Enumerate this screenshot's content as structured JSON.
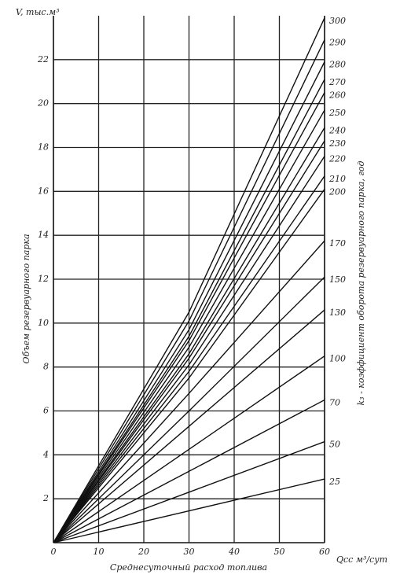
{
  "chart_data": {
    "type": "line",
    "y_title": "V, тыс.м³",
    "y_label": "Объем резервуарного парка",
    "x_title": "Qсс м³/сут",
    "x_label": "Среднесуточный расход топлива",
    "y2_label": "k₃ - коэффициент оборота резервуарного парка, год",
    "x": [
      0,
      30,
      60
    ],
    "xlim": [
      0,
      60
    ],
    "xticks": [
      0,
      10,
      20,
      30,
      40,
      50,
      60
    ],
    "ylim": [
      0,
      24
    ],
    "yticks": [
      2,
      4,
      6,
      8,
      10,
      12,
      14,
      16,
      18,
      20,
      22
    ],
    "grid": true,
    "series": [
      {
        "name": "25",
        "color": "#111",
        "values": [
          0,
          1.45,
          2.9
        ]
      },
      {
        "name": "50",
        "color": "#111",
        "values": [
          0,
          2.3,
          4.6
        ]
      },
      {
        "name": "70",
        "color": "#111",
        "values": [
          0,
          3.25,
          6.5
        ]
      },
      {
        "name": "100",
        "color": "#111",
        "values": [
          0,
          4.25,
          8.5
        ]
      },
      {
        "name": "130",
        "color": "#111",
        "values": [
          0,
          5.3,
          10.6
        ]
      },
      {
        "name": "150",
        "color": "#111",
        "values": [
          0,
          6.0,
          12.1
        ]
      },
      {
        "name": "170",
        "color": "#111",
        "values": [
          0,
          6.8,
          13.75
        ]
      },
      {
        "name": "200",
        "color": "#111",
        "values": [
          0,
          7.5,
          16.1
        ]
      },
      {
        "name": "210",
        "color": "#111",
        "values": [
          0,
          7.8,
          16.7
        ]
      },
      {
        "name": "220",
        "color": "#111",
        "values": [
          0,
          8.1,
          17.6
        ]
      },
      {
        "name": "230",
        "color": "#111",
        "values": [
          0,
          8.4,
          18.3
        ]
      },
      {
        "name": "240",
        "color": "#111",
        "values": [
          0,
          8.6,
          18.9
        ]
      },
      {
        "name": "250",
        "color": "#111",
        "values": [
          0,
          8.9,
          19.7
        ]
      },
      {
        "name": "260",
        "color": "#111",
        "values": [
          0,
          9.2,
          20.5
        ]
      },
      {
        "name": "270",
        "color": "#111",
        "values": [
          0,
          9.4,
          21.1
        ]
      },
      {
        "name": "280",
        "color": "#111",
        "values": [
          0,
          9.7,
          21.9
        ]
      },
      {
        "name": "290",
        "color": "#111",
        "values": [
          0,
          10.1,
          22.9
        ]
      },
      {
        "name": "300",
        "color": "#111",
        "values": [
          0,
          10.5,
          23.9
        ]
      }
    ]
  }
}
